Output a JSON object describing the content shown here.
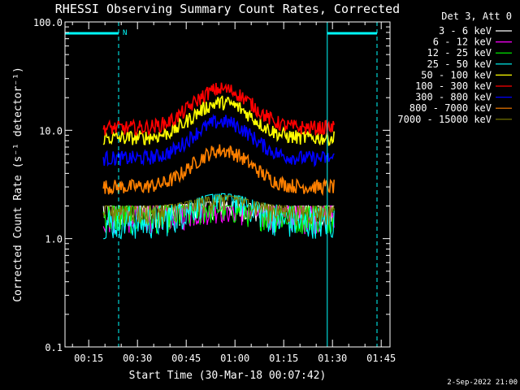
{
  "chart_data": {
    "type": "line",
    "title": "RHESSI Observing Summary Count Rates, Corrected",
    "xlabel": "Start Time (30-Mar-18 00:07:42)",
    "ylabel": "Corrected Count Rate (s⁻¹ detector⁻¹)",
    "yscale": "log",
    "ylim": [
      0.1,
      100.0
    ],
    "ytick_labels": [
      "0.1",
      "1.0",
      "10.0",
      "100.0"
    ],
    "xlim_minutes": [
      7.7,
      107.7
    ],
    "xtick_labels": [
      "00:15",
      "00:30",
      "00:45",
      "01:00",
      "01:15",
      "01:30",
      "01:45"
    ],
    "legend_title": "Det 3, Att 0",
    "legend_placement": "right",
    "series": [
      {
        "name": "3 - 6 keV",
        "color": "#ffffff",
        "level": 1.8,
        "peak": 2.2
      },
      {
        "name": "6 - 12 keV",
        "color": "#ff00ff",
        "level": 1.6,
        "peak": 2.0
      },
      {
        "name": "12 - 25 keV",
        "color": "#00ff00",
        "level": 1.6,
        "peak": 2.0
      },
      {
        "name": "25 - 50 keV",
        "color": "#00ffff",
        "level": 1.4,
        "peak": 2.6
      },
      {
        "name": "50 - 100 keV",
        "color": "#ffff00",
        "level": 8.5,
        "peak": 18
      },
      {
        "name": "100 - 300 keV",
        "color": "#ff0000",
        "level": 10.5,
        "peak": 24
      },
      {
        "name": "300 - 800 keV",
        "color": "#0000ff",
        "level": 5.5,
        "peak": 12
      },
      {
        "name": "800 - 7000 keV",
        "color": "#ff8000",
        "level": 3.0,
        "peak": 6.5
      },
      {
        "name": "7000 - 15000 keV",
        "color": "#808000",
        "level": 1.9,
        "peak": 2.5
      }
    ],
    "data_time_range_minutes": [
      19.5,
      90.5
    ],
    "peak_time_minutes": 56,
    "night_markers": [
      {
        "x_start": 7.7,
        "x_end": 24.2,
        "label": "N"
      },
      {
        "x_start": 88.4,
        "x_end": 103.7,
        "label": ""
      }
    ],
    "vertical_lines_minutes": [
      7.7,
      24.2,
      88.4,
      103.7
    ],
    "grid": false
  },
  "footer": {
    "timestamp": "2-Sep-2022 21:00"
  },
  "colors": {
    "background": "#000000",
    "axes": "#ffffff",
    "marker": "#00ffff"
  }
}
